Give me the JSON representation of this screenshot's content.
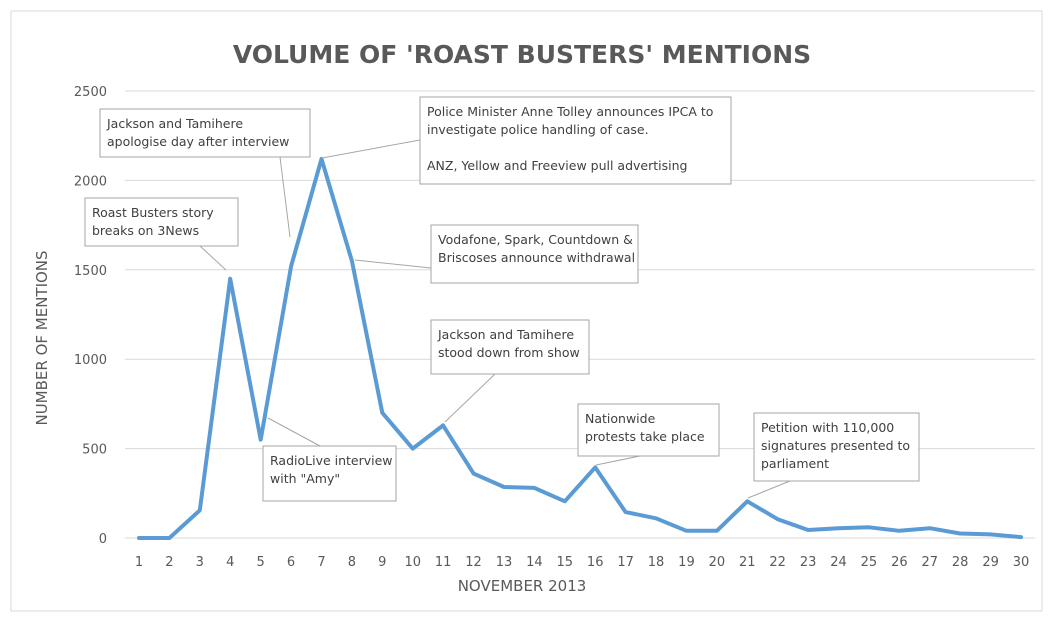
{
  "chart_data": {
    "type": "line",
    "title": "VOLUME OF 'ROAST BUSTERS' MENTIONS",
    "xlabel": "NOVEMBER 2013",
    "ylabel": "NUMBER OF MENTIONS",
    "ylim": [
      0,
      2500
    ],
    "yticks": [
      0,
      500,
      1000,
      1500,
      2000,
      2500
    ],
    "grid": true,
    "line_color": "#5B9BD5",
    "x": [
      1,
      2,
      3,
      4,
      5,
      6,
      7,
      8,
      9,
      10,
      11,
      12,
      13,
      14,
      15,
      16,
      17,
      18,
      19,
      20,
      21,
      22,
      23,
      24,
      25,
      26,
      27,
      28,
      29,
      30
    ],
    "values": [
      0,
      0,
      155,
      1450,
      550,
      1520,
      2120,
      1550,
      700,
      500,
      630,
      360,
      285,
      280,
      205,
      395,
      145,
      110,
      40,
      40,
      205,
      105,
      45,
      55,
      60,
      40,
      55,
      25,
      20,
      5
    ],
    "annotations": [
      {
        "x": 4,
        "lines": [
          "Roast Busters story",
          "breaks on 3News"
        ]
      },
      {
        "x": 6,
        "lines": [
          "Jackson and Tamihere",
          "apologise day after interview"
        ]
      },
      {
        "x": 7,
        "lines": [
          "Police Minister Anne Tolley announces IPCA to",
          "investigate police handling of case.",
          "",
          "ANZ, Yellow and Freeview pull advertising"
        ]
      },
      {
        "x": 8,
        "lines": [
          "Vodafone, Spark, Countdown &",
          "Briscoses announce withdrawal"
        ]
      },
      {
        "x": 11,
        "lines": [
          "Jackson and Tamihere",
          "stood down from show"
        ]
      },
      {
        "x": 5,
        "lines": [
          "RadioLive interview",
          "with \"Amy\""
        ]
      },
      {
        "x": 16,
        "lines": [
          "Nationwide",
          "protests take place"
        ]
      },
      {
        "x": 21,
        "lines": [
          "Petition with 110,000",
          "signatures presented to",
          "parliament"
        ]
      }
    ]
  }
}
